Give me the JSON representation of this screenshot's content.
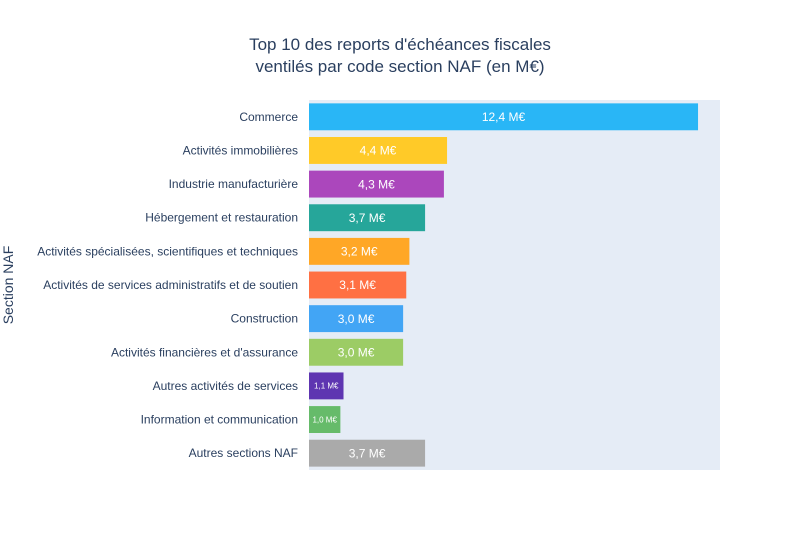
{
  "chart_data": {
    "type": "bar",
    "orientation": "horizontal",
    "title_lines": [
      "Top 10 des reports d'échéances fiscales",
      "ventilés par code section NAF (en M€)"
    ],
    "ylabel": "Section NAF",
    "xlabel": "",
    "grid": false,
    "xlim": [
      0,
      13.1
    ],
    "categories": [
      "Commerce",
      "Activités immobilières",
      "Industrie manufacturière",
      "Hébergement et restauration",
      "Activités spécialisées, scientifiques et techniques",
      "Activités de services administratifs et de soutien",
      "Construction",
      "Activités financières et d'assurance",
      "Autres activités de services",
      "Information et communication",
      "Autres sections NAF"
    ],
    "values": [
      12.4,
      4.4,
      4.3,
      3.7,
      3.2,
      3.1,
      3.0,
      3.0,
      1.1,
      1.0,
      3.7
    ],
    "value_labels": [
      "12,4 M€",
      "4,4 M€",
      "4,3 M€",
      "3,7 M€",
      "3,2 M€",
      "3,1 M€",
      "3,0 M€",
      "3,0 M€",
      "1,1 M€",
      "1,0 M€",
      "3,7 M€"
    ],
    "colors": [
      "#29b6f6",
      "#ffca28",
      "#ab47bc",
      "#26a69a",
      "#ffa726",
      "#ff7043",
      "#42a5f5",
      "#9ccc65",
      "#5e35b1",
      "#66bb6a",
      "#aaaaaa"
    ],
    "plot_background": "#e5ecf6"
  }
}
